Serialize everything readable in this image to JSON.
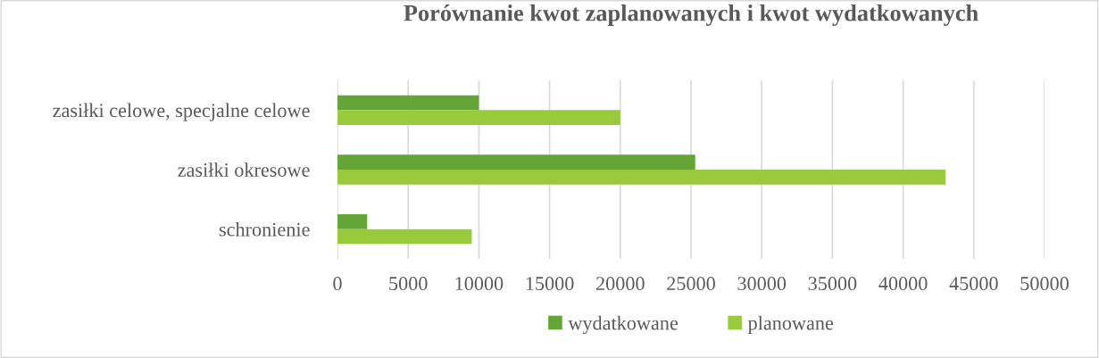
{
  "chart_data": {
    "type": "bar",
    "orientation": "horizontal",
    "title": "Porównanie kwot zaplanowanych i kwot wydatkowanych",
    "categories": [
      "zasiłki celowe, specjalne celowe",
      "zasiłki okresowe",
      "schronienie"
    ],
    "series": [
      {
        "name": "wydatkowane",
        "color": "#63a537",
        "values": [
          10000,
          25300,
          2100
        ]
      },
      {
        "name": "planowane",
        "color": "#99ca3c",
        "values": [
          20000,
          43000,
          9500
        ]
      }
    ],
    "xlim": [
      0,
      50000
    ],
    "xticks": [
      0,
      5000,
      10000,
      15000,
      20000,
      25000,
      30000,
      35000,
      40000,
      45000,
      50000
    ],
    "grid": "x",
    "legend": "bottom"
  }
}
